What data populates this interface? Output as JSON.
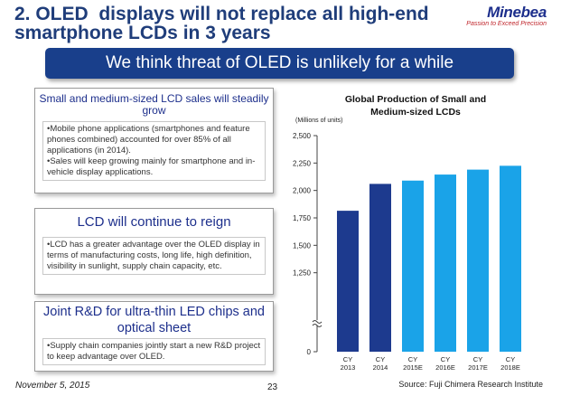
{
  "title": "2. OLED  displays will not replace all high-end\nsmartphone LCDs in 3 years",
  "logo": {
    "name": "Minebea",
    "tagline": "Passion to Exceed Precision"
  },
  "banner": "We think threat of OLED is unlikely for a while",
  "boxes": [
    {
      "heading": "Small and medium-sized LCD sales will steadily grow",
      "bullets": [
        "•Mobile phone applications (smartphones and feature phones combined) accounted for over 85% of all applications (in 2014).",
        "•Sales will keep growing mainly for smartphone and in-vehicle display applications."
      ]
    },
    {
      "heading": "LCD will continue to reign",
      "bullets": [
        "•LCD has a greater advantage over the OLED display in terms of manufacturing costs, long life, high definition, visibility in sunlight, supply chain capacity, etc."
      ]
    },
    {
      "heading": "Joint R&D for ultra-thin LED chips and optical sheet",
      "bullets": [
        "•Supply chain companies jointly start a new R&D project to keep advantage over OLED."
      ]
    }
  ],
  "chart_data": {
    "type": "bar",
    "title": "Global Production of Small and Medium-sized LCDs",
    "ylabel": "(Millions of units)",
    "categories": [
      [
        "CY",
        "2013"
      ],
      [
        "CY",
        "2014"
      ],
      [
        "CY",
        "2015E"
      ],
      [
        "CY",
        "2016E"
      ],
      [
        "CY",
        "2017E"
      ],
      [
        "CY",
        "2018E"
      ]
    ],
    "values": [
      1815,
      2060,
      2090,
      2145,
      2190,
      2225
    ],
    "y_ticks": [
      "2,500",
      "2,250",
      "2,000",
      "1,750",
      "1,500",
      "1,250",
      "0"
    ],
    "y_tick_values": [
      2500,
      2250,
      2000,
      1750,
      1500,
      1250
    ],
    "axis_break": true,
    "ylim": [
      1000,
      2500
    ],
    "colors": {
      "actual": "#1d3a8e",
      "estimate": "#1aa3e8"
    },
    "estimate_from_index": 2,
    "grid": false,
    "legend": "none"
  },
  "source": "Source: Fuji Chimera Research Institute",
  "date": "November 5, 2015",
  "page": "23"
}
